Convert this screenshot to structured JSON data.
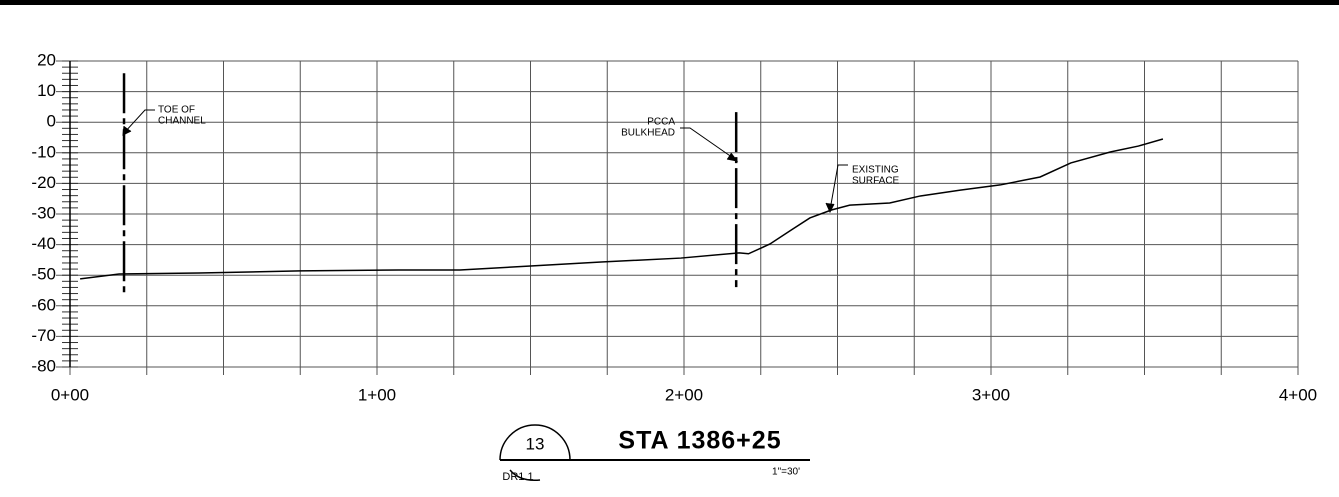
{
  "chart_data": {
    "type": "line",
    "title": "STA 1386+25",
    "detail_number": "13",
    "sheet": "DR1.1",
    "scale": "1\"=30'",
    "x": [
      3.3,
      16,
      42,
      75,
      107,
      127,
      150,
      173,
      199,
      218,
      221,
      228,
      235,
      241,
      248,
      254,
      267,
      277,
      290,
      303,
      316,
      326,
      339,
      348,
      356
    ],
    "series": [
      {
        "name": "EXISTING SURFACE",
        "color": "#000000",
        "values": [
          -51.2,
          -49.6,
          -49.3,
          -48.6,
          -48.3,
          -48.3,
          -47,
          -45.7,
          -44.4,
          -42.7,
          -43,
          -39.8,
          -35.2,
          -31.3,
          -28.7,
          -27.1,
          -26.4,
          -24.1,
          -22.2,
          -20.5,
          -17.9,
          -13.3,
          -9.7,
          -7.8,
          -5.5
        ]
      }
    ],
    "annotations": [
      {
        "lines": [
          "EXISTING",
          "SURFACE"
        ]
      },
      {
        "lines": [
          "TOE  OF",
          "CHANNEL"
        ],
        "x": 17.6,
        "y": [
          16,
          -57
        ]
      },
      {
        "lines": [
          "PCCA",
          "BULKHEAD"
        ],
        "x": 217,
        "y": [
          3.3,
          -53.9
        ]
      }
    ],
    "xlim": [
      0,
      400
    ],
    "xticks": [
      {
        "value": 0,
        "label": "0+00"
      },
      {
        "value": 100,
        "label": "1+00"
      },
      {
        "value": 200,
        "label": "2+00"
      },
      {
        "value": 300,
        "label": "3+00"
      },
      {
        "value": 400,
        "label": "4+00"
      }
    ],
    "xgrid_step": 25,
    "ylim": [
      -80,
      20
    ],
    "yticks": [
      20,
      10,
      0,
      -10,
      -20,
      -30,
      -40,
      -50,
      -60,
      -70,
      -80
    ],
    "yminor_step": 2,
    "grid": true
  }
}
